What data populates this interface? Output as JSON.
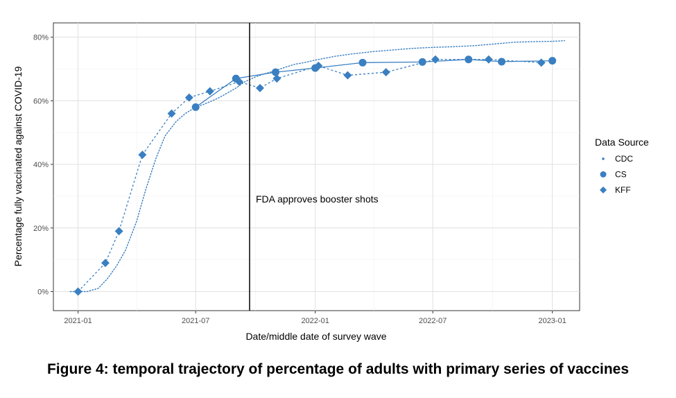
{
  "caption": "Figure 4: temporal trajectory of percentage of adults with primary series of vaccines",
  "chart_data": {
    "type": "line",
    "title": "",
    "xlabel": "Date/middle date of survey wave",
    "ylabel": "Percentage fully vaccinated against COVID-19",
    "x_type": "date",
    "xlim": [
      "2020-11-24",
      "2023-02-12"
    ],
    "ylim": [
      -0.06,
      0.845
    ],
    "x_ticks": [
      {
        "date": "2021-01-01",
        "label": "2021-01"
      },
      {
        "date": "2021-07-01",
        "label": "2021-07"
      },
      {
        "date": "2022-01-01",
        "label": "2022-01"
      },
      {
        "date": "2022-07-01",
        "label": "2022-07"
      },
      {
        "date": "2023-01-01",
        "label": "2023-01"
      }
    ],
    "y_ticks": [
      {
        "value": 0,
        "label": "0%"
      },
      {
        "value": 0.2,
        "label": "20%"
      },
      {
        "value": 0.4,
        "label": "40%"
      },
      {
        "value": 0.6,
        "label": "60%"
      },
      {
        "value": 0.8,
        "label": "80%"
      }
    ],
    "grid": true,
    "legend": {
      "title": "Data Source",
      "position": "right"
    },
    "color": "#3a7fc1",
    "annotation": {
      "text": "FDA approves booster shots",
      "date": "2021-09-22"
    },
    "series": [
      {
        "name": "CDC",
        "style": "dotted-line",
        "points": [
          {
            "x": "2020-12-20",
            "y": 0.0
          },
          {
            "x": "2021-01-15",
            "y": 0.0
          },
          {
            "x": "2021-02-01",
            "y": 0.01
          },
          {
            "x": "2021-02-15",
            "y": 0.04
          },
          {
            "x": "2021-03-01",
            "y": 0.08
          },
          {
            "x": "2021-03-15",
            "y": 0.13
          },
          {
            "x": "2021-04-01",
            "y": 0.22
          },
          {
            "x": "2021-04-15",
            "y": 0.32
          },
          {
            "x": "2021-05-01",
            "y": 0.42
          },
          {
            "x": "2021-05-15",
            "y": 0.49
          },
          {
            "x": "2021-06-01",
            "y": 0.535
          },
          {
            "x": "2021-06-15",
            "y": 0.56
          },
          {
            "x": "2021-07-01",
            "y": 0.58
          },
          {
            "x": "2021-07-15",
            "y": 0.59
          },
          {
            "x": "2021-08-01",
            "y": 0.605
          },
          {
            "x": "2021-08-15",
            "y": 0.62
          },
          {
            "x": "2021-09-01",
            "y": 0.64
          },
          {
            "x": "2021-09-15",
            "y": 0.66
          },
          {
            "x": "2021-10-01",
            "y": 0.675
          },
          {
            "x": "2021-10-15",
            "y": 0.685
          },
          {
            "x": "2021-11-01",
            "y": 0.695
          },
          {
            "x": "2021-11-15",
            "y": 0.705
          },
          {
            "x": "2021-12-01",
            "y": 0.715
          },
          {
            "x": "2021-12-15",
            "y": 0.72
          },
          {
            "x": "2022-01-01",
            "y": 0.728
          },
          {
            "x": "2022-02-01",
            "y": 0.74
          },
          {
            "x": "2022-03-01",
            "y": 0.748
          },
          {
            "x": "2022-04-01",
            "y": 0.755
          },
          {
            "x": "2022-05-01",
            "y": 0.76
          },
          {
            "x": "2022-06-01",
            "y": 0.765
          },
          {
            "x": "2022-07-01",
            "y": 0.768
          },
          {
            "x": "2022-08-01",
            "y": 0.77
          },
          {
            "x": "2022-09-01",
            "y": 0.773
          },
          {
            "x": "2022-10-01",
            "y": 0.778
          },
          {
            "x": "2022-11-01",
            "y": 0.784
          },
          {
            "x": "2022-12-01",
            "y": 0.786
          },
          {
            "x": "2023-01-01",
            "y": 0.787
          },
          {
            "x": "2023-01-20",
            "y": 0.789
          }
        ]
      },
      {
        "name": "CS",
        "style": "circle",
        "points": [
          {
            "x": "2021-07-01",
            "y": 0.58
          },
          {
            "x": "2021-09-01",
            "y": 0.67
          },
          {
            "x": "2021-11-01",
            "y": 0.69
          },
          {
            "x": "2022-01-01",
            "y": 0.703
          },
          {
            "x": "2022-03-15",
            "y": 0.72
          },
          {
            "x": "2022-06-15",
            "y": 0.722
          },
          {
            "x": "2022-08-25",
            "y": 0.73
          },
          {
            "x": "2022-10-15",
            "y": 0.723
          },
          {
            "x": "2023-01-01",
            "y": 0.726
          }
        ]
      },
      {
        "name": "KFF",
        "style": "diamond",
        "points": [
          {
            "x": "2021-01-01",
            "y": 0.0
          },
          {
            "x": "2021-02-12",
            "y": 0.09
          },
          {
            "x": "2021-03-05",
            "y": 0.19
          },
          {
            "x": "2021-04-10",
            "y": 0.43
          },
          {
            "x": "2021-05-25",
            "y": 0.56
          },
          {
            "x": "2021-06-21",
            "y": 0.61
          },
          {
            "x": "2021-07-23",
            "y": 0.63
          },
          {
            "x": "2021-09-06",
            "y": 0.66
          },
          {
            "x": "2021-10-08",
            "y": 0.64
          },
          {
            "x": "2021-11-03",
            "y": 0.67
          },
          {
            "x": "2022-01-06",
            "y": 0.71
          },
          {
            "x": "2022-02-20",
            "y": 0.68
          },
          {
            "x": "2022-04-20",
            "y": 0.69
          },
          {
            "x": "2022-07-05",
            "y": 0.73
          },
          {
            "x": "2022-09-25",
            "y": 0.73
          },
          {
            "x": "2022-12-15",
            "y": 0.72
          }
        ]
      }
    ]
  }
}
